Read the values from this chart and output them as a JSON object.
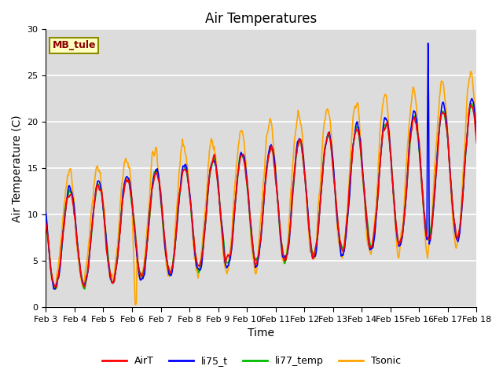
{
  "title": "Air Temperatures",
  "xlabel": "Time",
  "ylabel": "Air Temperature (C)",
  "ylim": [
    0,
    30
  ],
  "xlim": [
    3,
    18
  ],
  "xtick_positions": [
    3,
    4,
    5,
    6,
    7,
    8,
    9,
    10,
    11,
    12,
    13,
    14,
    15,
    16,
    17,
    18
  ],
  "xtick_labels": [
    "Feb 3",
    "Feb 4",
    "Feb 5",
    "Feb 6",
    "Feb 7",
    "Feb 8",
    "Feb 9",
    "Feb 10",
    "Feb 11",
    "Feb 12",
    "Feb 13",
    "Feb 14",
    "Feb 15",
    "Feb 16",
    "Feb 17",
    "Feb 18"
  ],
  "ytick_positions": [
    0,
    5,
    10,
    15,
    20,
    25,
    30
  ],
  "station_label": "MB_tule",
  "station_label_color": "#8B0000",
  "station_box_facecolor": "#FFFFC0",
  "station_box_edgecolor": "#8B8B00",
  "colors": {
    "AirT": "#FF0000",
    "li75_t": "#0000FF",
    "li77_temp": "#00BB00",
    "Tsonic": "#FFA500"
  },
  "bg_color": "#DCDCDC",
  "fig_bg_color": "#FFFFFF",
  "line_width": 1.2,
  "grid_color": "#FFFFFF",
  "label_fontsize": 10,
  "tick_fontsize": 8,
  "title_fontsize": 12
}
